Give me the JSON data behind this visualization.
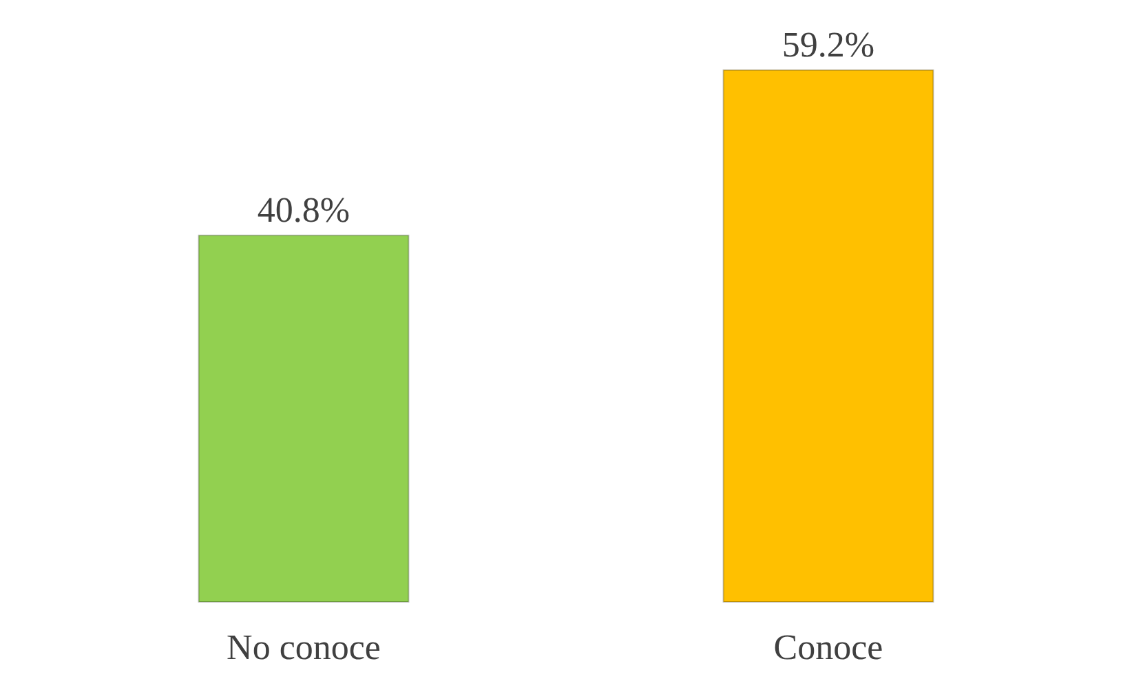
{
  "chart_data": {
    "type": "bar",
    "categories": [
      "No conoce",
      "Conoce"
    ],
    "values": [
      40.8,
      59.2
    ],
    "colors": [
      "#92d050",
      "#ffc000"
    ],
    "value_labels": [
      "40.8%",
      "59.2%"
    ],
    "legend": false
  }
}
